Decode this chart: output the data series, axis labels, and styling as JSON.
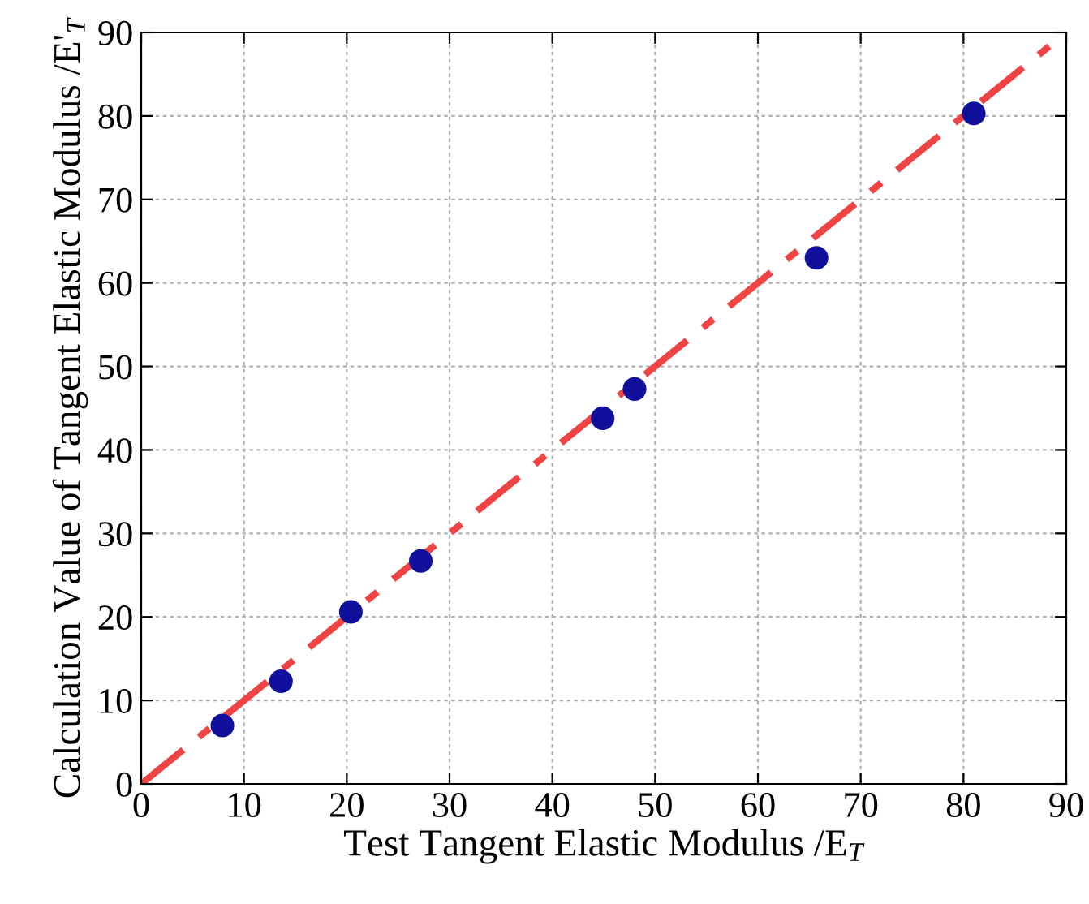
{
  "chart_data": {
    "type": "scatter",
    "xlabel": "Test Tangent Elastic Modulus /E$_{T}$",
    "ylabel": "Calculation Value of Tangent Elastic Modulus /E'$_{T}$",
    "series": [
      {
        "color": "#10109c",
        "marker": "circle",
        "x": [
          7.9,
          13.6,
          20.4,
          27.2,
          44.9,
          48.0,
          65.7,
          81.0
        ],
        "values": [
          7.0,
          12.3,
          20.6,
          26.7,
          43.8,
          47.3,
          63.0,
          80.3
        ]
      },
      {
        "type": "line",
        "color": "#f04444",
        "line_style": "dashdot",
        "marker": "none",
        "x": [
          0,
          90
        ],
        "values": [
          0,
          90
        ]
      }
    ],
    "xlim": [
      0,
      90
    ],
    "ylim": [
      0,
      90
    ],
    "xticks": [
      0,
      10,
      20,
      30,
      40,
      50,
      60,
      70,
      80,
      90
    ],
    "yticks": [
      0,
      10,
      20,
      30,
      40,
      50,
      60,
      70,
      80,
      90
    ],
    "grid": true,
    "legend": false
  }
}
